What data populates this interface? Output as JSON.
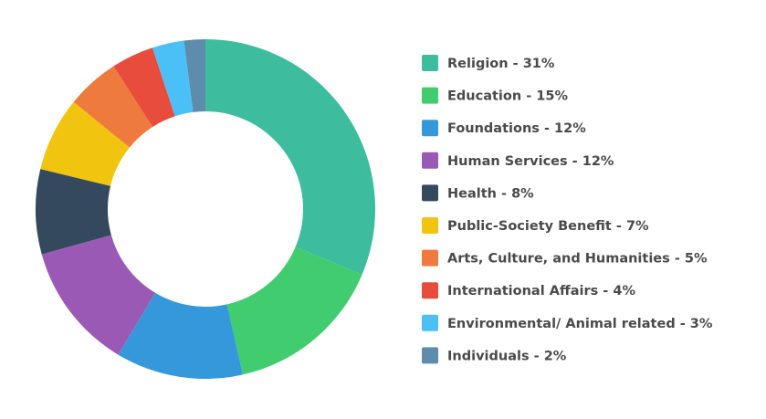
{
  "chart_data": {
    "type": "donut",
    "categories": [
      "Religion - 31%",
      "Education - 15%",
      "Foundations - 12%",
      "Human Services - 12%",
      "Health - 8%",
      "Public-Society Benefit - 7%",
      "Arts, Culture, and Humanities - 5%",
      "International Affairs - 4%",
      "Environmental/ Animal related - 3%",
      "Individuals - 2%"
    ],
    "values": [
      31,
      15,
      12,
      12,
      8,
      7,
      5,
      4,
      3,
      2
    ],
    "colors": [
      "#3dbd9e",
      "#40cc6f",
      "#3598db",
      "#9b59b6",
      "#34495e",
      "#f1c40f",
      "#ef7a3e",
      "#e74c3c",
      "#4ac0f6",
      "#5e8cad"
    ],
    "legend": "right"
  }
}
